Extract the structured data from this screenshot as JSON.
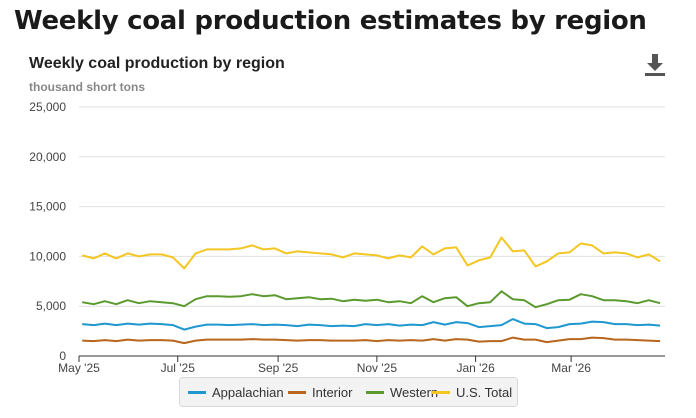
{
  "page": {
    "heading": "Weekly coal production estimates by region"
  },
  "icons": {
    "download": "download-icon"
  },
  "colors": {
    "appalachian": "#1f97cf",
    "interior": "#b8651d",
    "western": "#5a9a2e",
    "us_total": "#f3c623",
    "grid": "#e0e0e0",
    "axis": "#333333"
  },
  "chart_data": {
    "type": "line",
    "title": "Weekly coal production by region",
    "ylabel": "thousand short tons",
    "xlabel": "",
    "ylim": [
      0,
      25000
    ],
    "yticks": [
      0,
      5000,
      10000,
      15000,
      20000,
      25000
    ],
    "yticklabels": [
      "0",
      "5,000",
      "10,000",
      "15,000",
      "20,000",
      "25,000"
    ],
    "xticklabels": [
      "May '25",
      "Jul '25",
      "Sep '25",
      "Nov '25",
      "Jan '26",
      "Mar '26"
    ],
    "xtick_dates": [
      "2025-05-01",
      "2025-07-01",
      "2025-09-01",
      "2025-11-01",
      "2026-01-01",
      "2026-03-01"
    ],
    "x": [
      "2025-05-03",
      "2025-05-10",
      "2025-05-17",
      "2025-05-24",
      "2025-05-31",
      "2025-06-07",
      "2025-06-14",
      "2025-06-21",
      "2025-06-28",
      "2025-07-05",
      "2025-07-12",
      "2025-07-19",
      "2025-07-26",
      "2025-08-02",
      "2025-08-09",
      "2025-08-16",
      "2025-08-23",
      "2025-08-30",
      "2025-09-06",
      "2025-09-13",
      "2025-09-20",
      "2025-09-27",
      "2025-10-04",
      "2025-10-11",
      "2025-10-18",
      "2025-10-25",
      "2025-11-01",
      "2025-11-08",
      "2025-11-15",
      "2025-11-22",
      "2025-11-29",
      "2025-12-06",
      "2025-12-13",
      "2025-12-20",
      "2025-12-27",
      "2026-01-03",
      "2026-01-10",
      "2026-01-17",
      "2026-01-24",
      "2026-01-31",
      "2026-02-07",
      "2026-02-14",
      "2026-02-21",
      "2026-02-28",
      "2026-03-07",
      "2026-03-14",
      "2026-03-21",
      "2026-03-28",
      "2026-04-04",
      "2026-04-11",
      "2026-04-18",
      "2026-04-25"
    ],
    "series": [
      {
        "name": "Appalachian",
        "color": "#1f97cf",
        "values": [
          3200,
          3100,
          3250,
          3100,
          3250,
          3150,
          3250,
          3200,
          3100,
          2650,
          2950,
          3150,
          3150,
          3100,
          3150,
          3200,
          3100,
          3150,
          3100,
          3000,
          3150,
          3100,
          3000,
          3050,
          3000,
          3200,
          3100,
          3200,
          3050,
          3150,
          3100,
          3400,
          3150,
          3400,
          3300,
          2900,
          3000,
          3100,
          3700,
          3250,
          3200,
          2800,
          2900,
          3200,
          3250,
          3450,
          3400,
          3200,
          3200,
          3100,
          3150,
          3050
        ]
      },
      {
        "name": "Interior",
        "color": "#b8651d",
        "values": [
          1550,
          1500,
          1600,
          1500,
          1650,
          1550,
          1600,
          1600,
          1550,
          1300,
          1550,
          1650,
          1650,
          1650,
          1650,
          1700,
          1650,
          1650,
          1600,
          1550,
          1600,
          1600,
          1550,
          1550,
          1550,
          1600,
          1500,
          1600,
          1550,
          1600,
          1550,
          1700,
          1550,
          1700,
          1650,
          1450,
          1500,
          1500,
          1850,
          1650,
          1650,
          1400,
          1550,
          1700,
          1700,
          1850,
          1800,
          1650,
          1650,
          1600,
          1550,
          1500
        ]
      },
      {
        "name": "Western",
        "color": "#5a9a2e",
        "values": [
          5400,
          5200,
          5500,
          5200,
          5600,
          5300,
          5500,
          5400,
          5300,
          5000,
          5700,
          6000,
          6000,
          5950,
          6000,
          6200,
          6000,
          6100,
          5700,
          5800,
          5900,
          5700,
          5750,
          5500,
          5650,
          5550,
          5650,
          5400,
          5500,
          5300,
          6000,
          5400,
          5800,
          5900,
          5000,
          5300,
          5400,
          6500,
          5700,
          5600,
          4900,
          5200,
          5600,
          5650,
          6200,
          6000,
          5600,
          5600,
          5500,
          5300,
          5600,
          5300
        ]
      },
      {
        "name": "U.S. Total",
        "color": "#f3c623",
        "values": [
          10100,
          9800,
          10300,
          9800,
          10300,
          10000,
          10200,
          10200,
          9900,
          8800,
          10300,
          10700,
          10700,
          10700,
          10800,
          11100,
          10700,
          10800,
          10300,
          10500,
          10400,
          10300,
          10200,
          9900,
          10300,
          10200,
          10100,
          9800,
          10100,
          9900,
          11000,
          10200,
          10800,
          10900,
          9100,
          9600,
          9900,
          11900,
          10500,
          10600,
          9000,
          9500,
          10300,
          10400,
          11300,
          11100,
          10300,
          10400,
          10300,
          9900,
          10200,
          9500
        ]
      }
    ]
  }
}
